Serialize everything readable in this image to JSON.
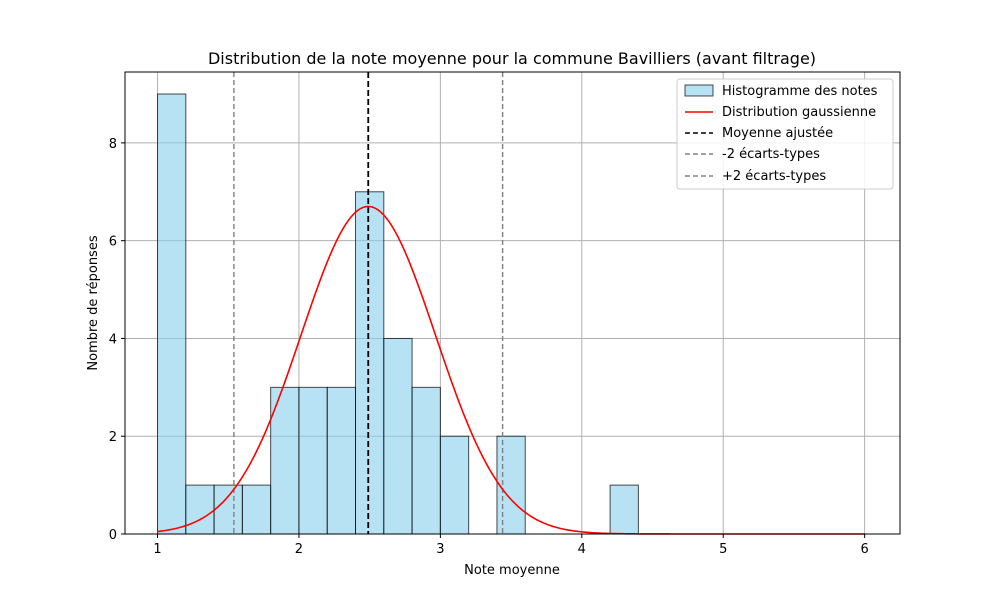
{
  "chart_data": {
    "type": "bar",
    "title": "Distribution de la note moyenne pour la commune Bavilliers (avant filtrage)",
    "xlabel": "Note moyenne",
    "ylabel": "Nombre de réponses",
    "xlim": [
      0.77,
      6.25
    ],
    "ylim": [
      0,
      9.45
    ],
    "xticks": [
      1,
      2,
      3,
      4,
      5,
      6
    ],
    "yticks": [
      0,
      2,
      4,
      6,
      8
    ],
    "grid": true,
    "legend_position": "top-right",
    "histogram": {
      "name": "Histogramme des notes",
      "bin_width": 0.2,
      "bins": [
        {
          "x0": 1.0,
          "count": 9
        },
        {
          "x0": 1.2,
          "count": 1
        },
        {
          "x0": 1.4,
          "count": 1
        },
        {
          "x0": 1.6,
          "count": 1
        },
        {
          "x0": 1.8,
          "count": 3
        },
        {
          "x0": 2.0,
          "count": 3
        },
        {
          "x0": 2.2,
          "count": 3
        },
        {
          "x0": 2.4,
          "count": 7
        },
        {
          "x0": 2.6,
          "count": 4
        },
        {
          "x0": 2.8,
          "count": 3
        },
        {
          "x0": 3.0,
          "count": 2
        },
        {
          "x0": 3.4,
          "count": 2
        },
        {
          "x0": 4.2,
          "count": 1
        }
      ],
      "fill": "#87ceeb",
      "edge": "#000000"
    },
    "gaussian": {
      "name": "Distribution gaussienne",
      "mean": 2.49,
      "sd": 0.476,
      "peak": 6.7,
      "x_range": [
        1,
        6
      ],
      "color": "#ff0000"
    },
    "mean_line": {
      "name": "Moyenne ajustée",
      "x": 2.49,
      "color": "#000000"
    },
    "minus_2sd_line": {
      "name": "-2 écarts-types",
      "x": 1.54,
      "color": "#808080"
    },
    "plus_2sd_line": {
      "name": "+2 écarts-types",
      "x": 3.44,
      "color": "#808080"
    }
  }
}
